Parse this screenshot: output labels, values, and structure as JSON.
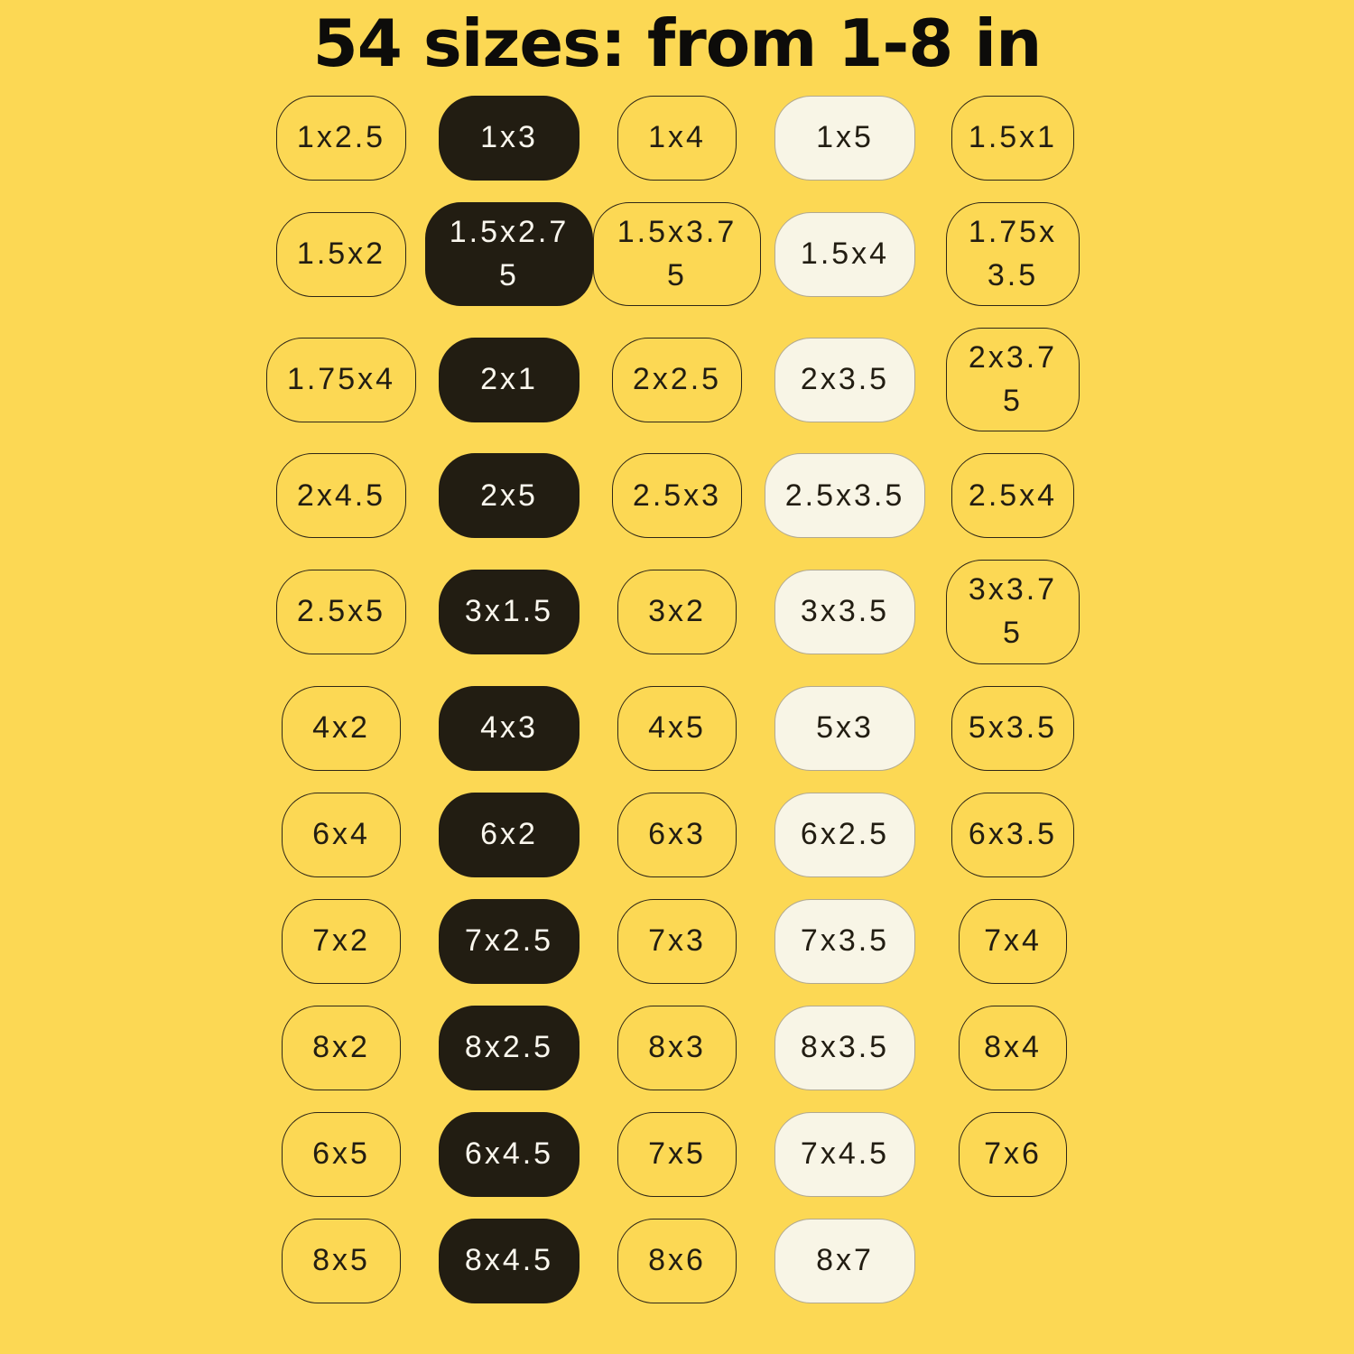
{
  "title": "54 sizes: from 1-8 in",
  "units": "in",
  "colors": {
    "background": "#FCD854",
    "pill_dark_fill": "#221D12",
    "pill_cream_fill": "#F8F5E6",
    "pill_outline_border": "#2E2616",
    "pill_cream_border": "#B2A98F",
    "text_dark": "#221D12",
    "text_light": "#FAF7EE",
    "title_color": "#0D0C0A"
  },
  "grid": {
    "columns": 5,
    "total_sizes": 54,
    "rows": [
      {
        "cells": [
          {
            "label": "1x2.5",
            "variant": "outline"
          },
          {
            "label": "1x3",
            "variant": "dark"
          },
          {
            "label": "1x4",
            "variant": "outline"
          },
          {
            "label": "1x5",
            "variant": "cream"
          },
          {
            "label": "1.5x1",
            "variant": "outline"
          }
        ]
      },
      {
        "cells": [
          {
            "label": "1.5x2",
            "variant": "outline"
          },
          {
            "label": "1.5x2.75",
            "variant": "dark"
          },
          {
            "label": "1.5x3.75",
            "variant": "outline"
          },
          {
            "label": "1.5x4",
            "variant": "cream"
          },
          {
            "label": "1.75x3.5",
            "variant": "outline"
          }
        ]
      },
      {
        "cells": [
          {
            "label": "1.75x4",
            "variant": "outline"
          },
          {
            "label": "2x1",
            "variant": "dark"
          },
          {
            "label": "2x2.5",
            "variant": "outline"
          },
          {
            "label": "2x3.5",
            "variant": "cream"
          },
          {
            "label": "2x3.75",
            "variant": "outline"
          }
        ]
      },
      {
        "cells": [
          {
            "label": "2x4.5",
            "variant": "outline"
          },
          {
            "label": "2x5",
            "variant": "dark"
          },
          {
            "label": "2.5x3",
            "variant": "outline"
          },
          {
            "label": "2.5x3.5",
            "variant": "cream"
          },
          {
            "label": "2.5x4",
            "variant": "outline"
          }
        ]
      },
      {
        "cells": [
          {
            "label": "2.5x5",
            "variant": "outline"
          },
          {
            "label": "3x1.5",
            "variant": "dark"
          },
          {
            "label": "3x2",
            "variant": "outline"
          },
          {
            "label": "3x3.5",
            "variant": "cream"
          },
          {
            "label": "3x3.75",
            "variant": "outline"
          }
        ]
      },
      {
        "cells": [
          {
            "label": "4x2",
            "variant": "outline"
          },
          {
            "label": "4x3",
            "variant": "dark"
          },
          {
            "label": "4x5",
            "variant": "outline"
          },
          {
            "label": "5x3",
            "variant": "cream"
          },
          {
            "label": "5x3.5",
            "variant": "outline"
          }
        ]
      },
      {
        "cells": [
          {
            "label": "6x4",
            "variant": "outline"
          },
          {
            "label": "6x2",
            "variant": "dark"
          },
          {
            "label": "6x3",
            "variant": "outline"
          },
          {
            "label": "6x2.5",
            "variant": "cream"
          },
          {
            "label": "6x3.5",
            "variant": "outline"
          }
        ]
      },
      {
        "cells": [
          {
            "label": "7x2",
            "variant": "outline"
          },
          {
            "label": "7x2.5",
            "variant": "dark"
          },
          {
            "label": "7x3",
            "variant": "outline"
          },
          {
            "label": "7x3.5",
            "variant": "cream"
          },
          {
            "label": "7x4",
            "variant": "outline"
          }
        ]
      },
      {
        "cells": [
          {
            "label": "8x2",
            "variant": "outline"
          },
          {
            "label": "8x2.5",
            "variant": "dark"
          },
          {
            "label": "8x3",
            "variant": "outline"
          },
          {
            "label": "8x3.5",
            "variant": "cream"
          },
          {
            "label": "8x4",
            "variant": "outline"
          }
        ]
      },
      {
        "cells": [
          {
            "label": "6x5",
            "variant": "outline"
          },
          {
            "label": "6x4.5",
            "variant": "dark"
          },
          {
            "label": "7x5",
            "variant": "outline"
          },
          {
            "label": "7x4.5",
            "variant": "cream"
          },
          {
            "label": "7x6",
            "variant": "outline"
          }
        ]
      },
      {
        "cells": [
          {
            "label": "8x5",
            "variant": "outline"
          },
          {
            "label": "8x4.5",
            "variant": "dark"
          },
          {
            "label": "8x6",
            "variant": "outline"
          },
          {
            "label": "8x7",
            "variant": "cream"
          }
        ]
      }
    ]
  }
}
